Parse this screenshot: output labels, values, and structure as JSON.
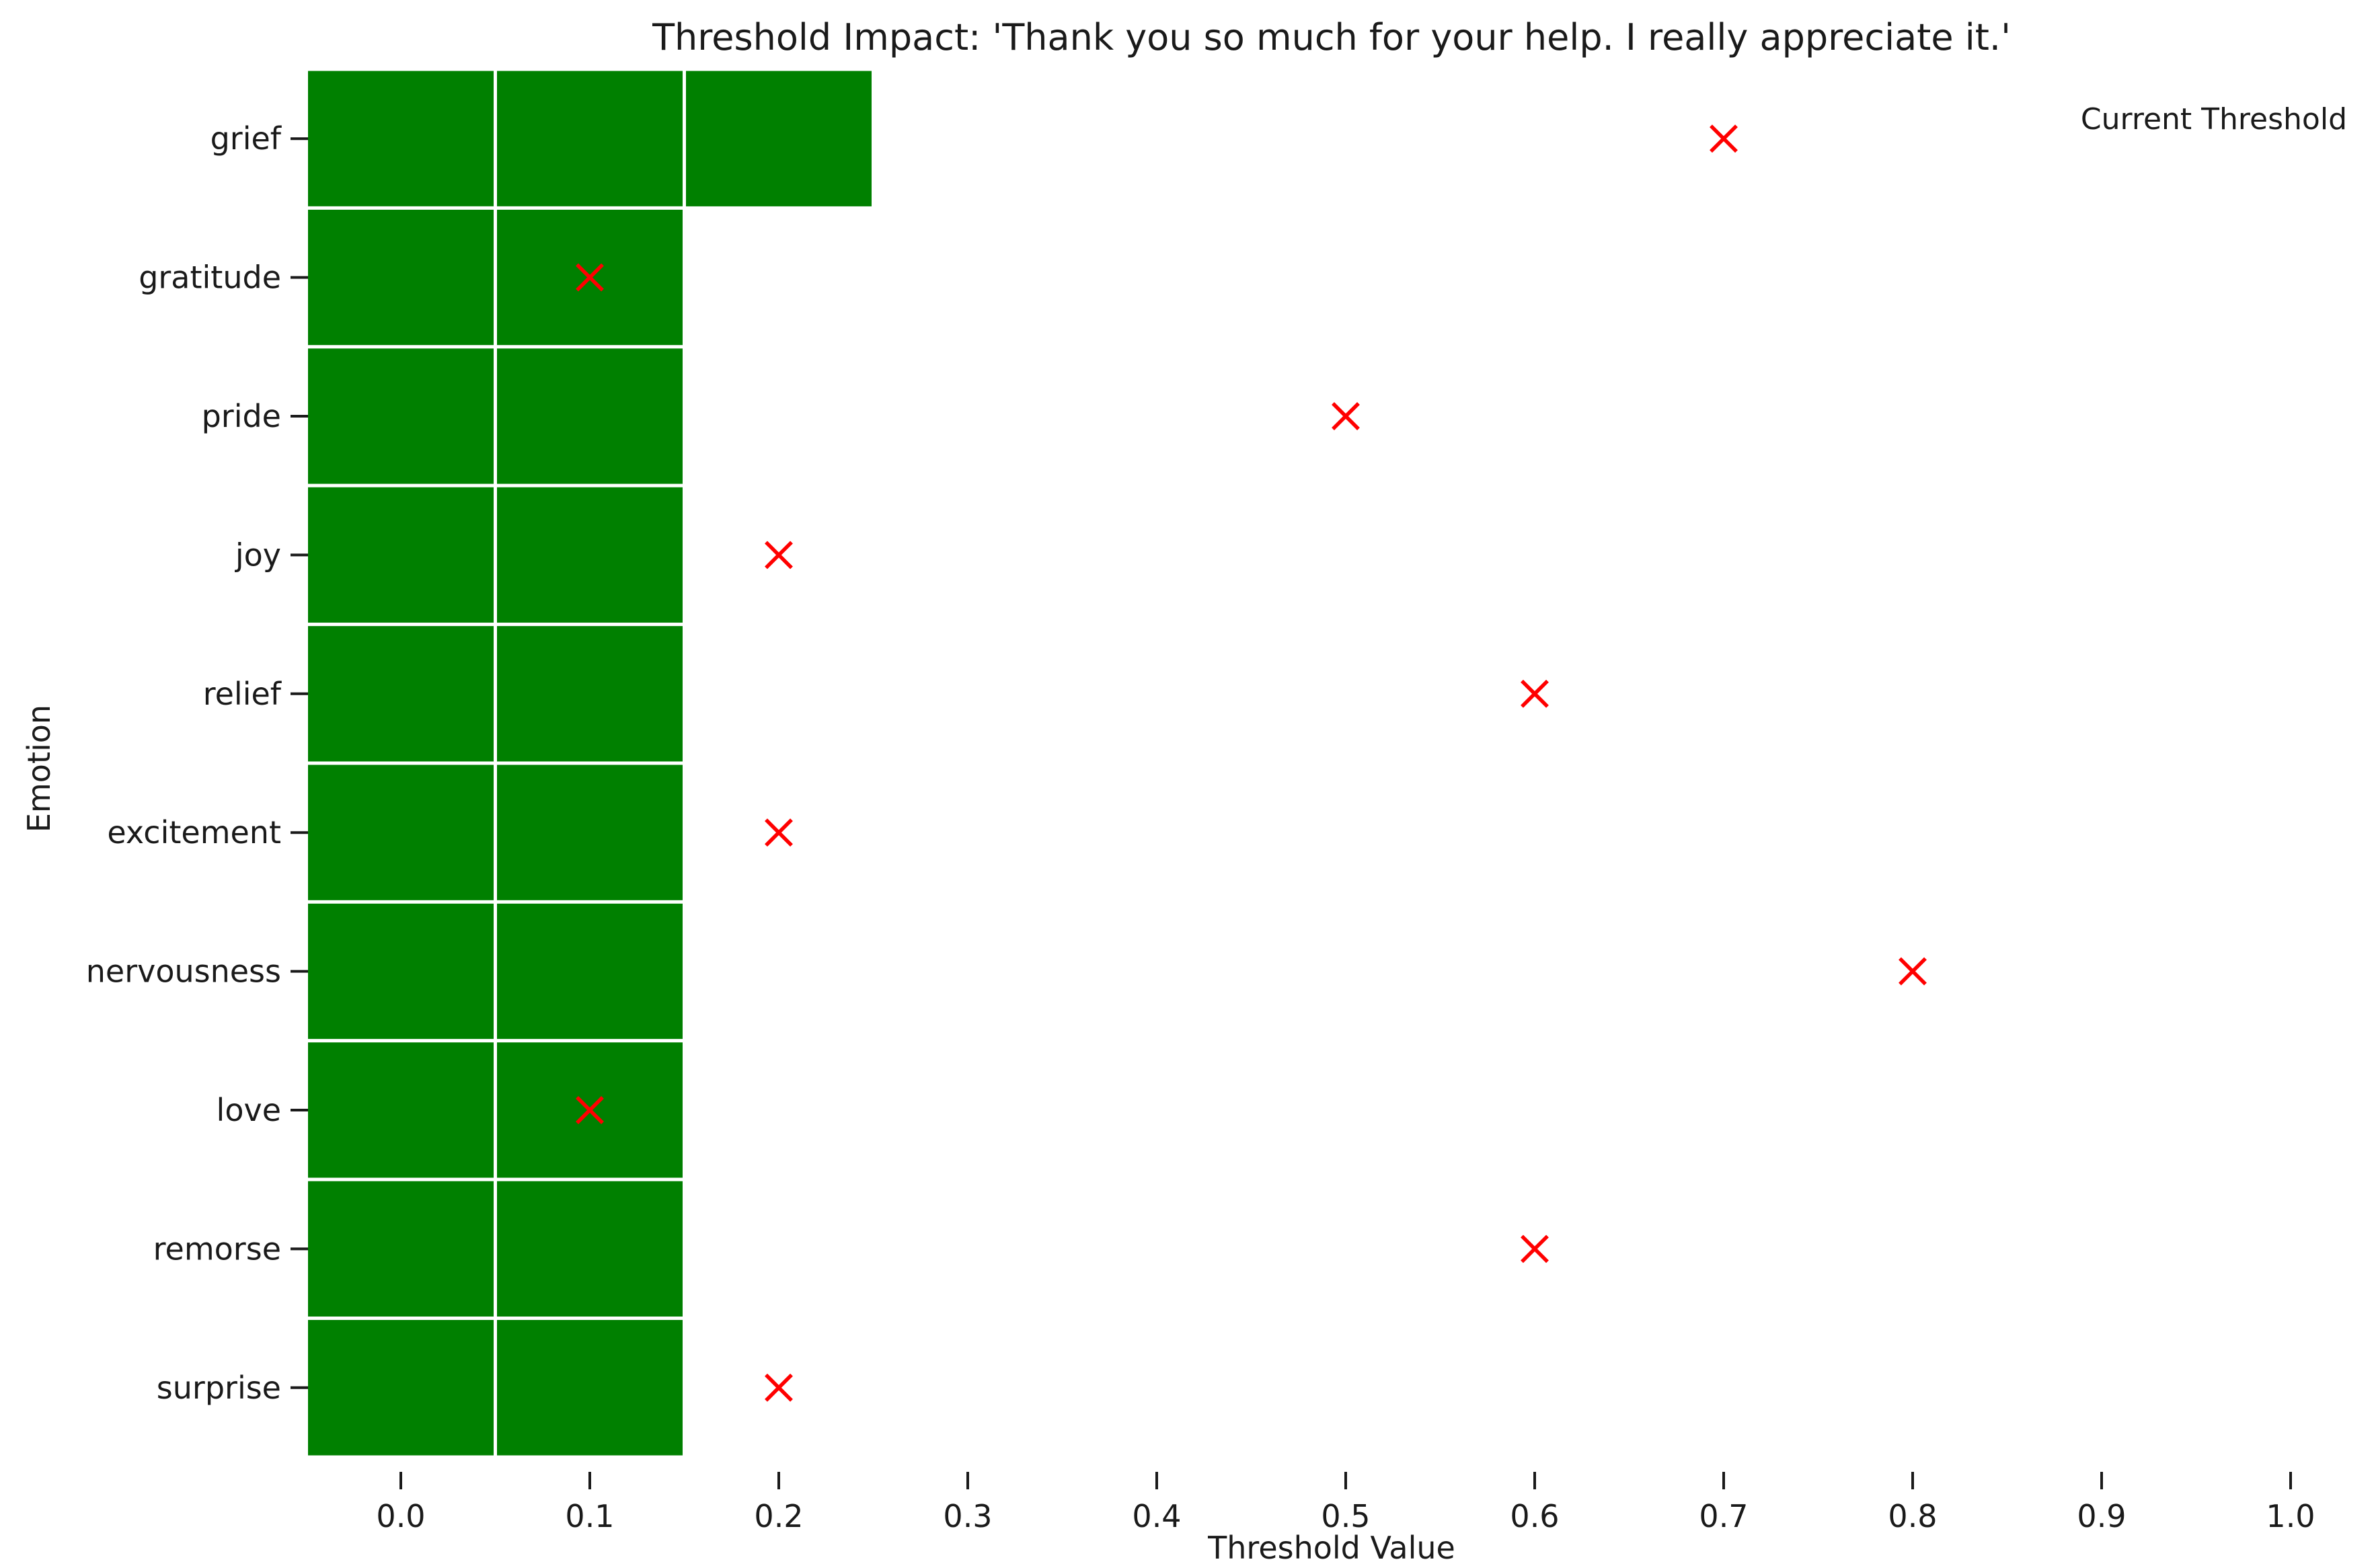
{
  "chart_data": {
    "type": "heatmap",
    "title": "Threshold Impact: 'Thank you so much for your help. I really appreciate it.'",
    "xlabel": "Threshold Value",
    "ylabel": "Emotion",
    "x_ticks": [
      "0.0",
      "0.1",
      "0.2",
      "0.3",
      "0.4",
      "0.5",
      "0.6",
      "0.7",
      "0.8",
      "0.9",
      "1.0"
    ],
    "x_values": [
      0.0,
      0.1,
      0.2,
      0.3,
      0.4,
      0.5,
      0.6,
      0.7,
      0.8,
      0.9,
      1.0
    ],
    "xlim": [
      -0.05,
      1.05
    ],
    "emotions": [
      "grief",
      "gratitude",
      "pride",
      "joy",
      "relief",
      "excitement",
      "nervousness",
      "love",
      "remorse",
      "surprise"
    ],
    "active_cells": [
      [
        0.0,
        0.1,
        0.2
      ],
      [
        0.0,
        0.1
      ],
      [
        0.0,
        0.1
      ],
      [
        0.0,
        0.1
      ],
      [
        0.0,
        0.1
      ],
      [
        0.0,
        0.1
      ],
      [
        0.0,
        0.1
      ],
      [
        0.0,
        0.1
      ],
      [
        0.0,
        0.1
      ],
      [
        0.0,
        0.1
      ]
    ],
    "current_thresholds": [
      0.7,
      0.1,
      0.5,
      0.2,
      0.6,
      0.2,
      0.8,
      0.1,
      0.6,
      0.2
    ],
    "legend": {
      "label": "Current Threshold",
      "placement": "top-right"
    },
    "grid": false,
    "colors": {
      "cell": "#008000",
      "cell_border": "#ffffff",
      "marker": "#ff0000",
      "text": "#1a1a1a"
    }
  }
}
